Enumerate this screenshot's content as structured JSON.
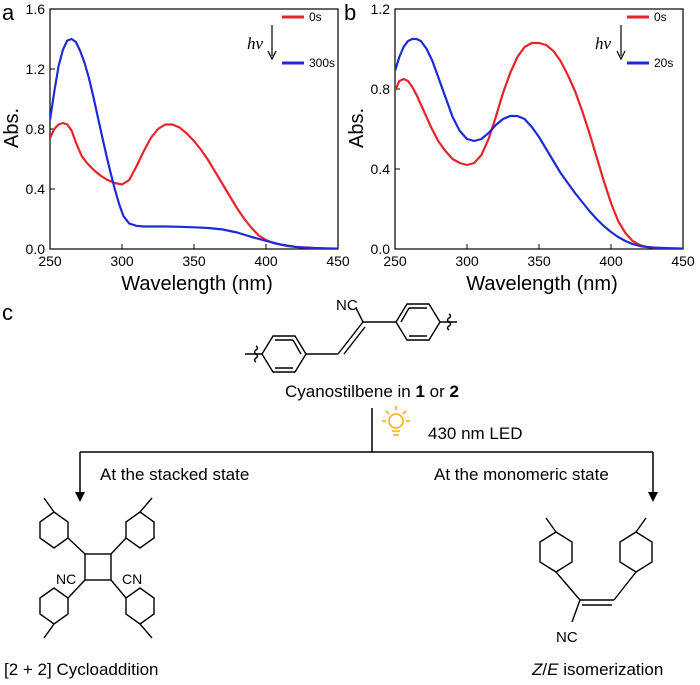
{
  "panel_labels": {
    "a": "a",
    "b": "b",
    "c": "c"
  },
  "chart_data": [
    {
      "type": "line",
      "panel": "a",
      "xlabel": "Wavelength (nm)",
      "ylabel": "Abs.",
      "xlim": [
        250,
        450
      ],
      "ylim": [
        0,
        1.6
      ],
      "xticks": [
        "250",
        "300",
        "350",
        "400",
        "450"
      ],
      "yticks": [
        "0.0",
        "0.4",
        "0.8",
        "1.2",
        "1.6"
      ],
      "annotation": "hv",
      "series": [
        {
          "name": "0s",
          "color": "#e8232a",
          "x": [
            250,
            253,
            256,
            259,
            262,
            265,
            268,
            272,
            276,
            280,
            285,
            290,
            295,
            300,
            305,
            310,
            315,
            320,
            325,
            330,
            335,
            340,
            345,
            350,
            355,
            360,
            365,
            370,
            375,
            380,
            385,
            390,
            395,
            400,
            405,
            410,
            415,
            420,
            425,
            430,
            435,
            440,
            445,
            450
          ],
          "y": [
            0.74,
            0.8,
            0.83,
            0.84,
            0.83,
            0.79,
            0.71,
            0.62,
            0.57,
            0.53,
            0.49,
            0.46,
            0.44,
            0.43,
            0.46,
            0.55,
            0.65,
            0.74,
            0.8,
            0.83,
            0.83,
            0.81,
            0.77,
            0.72,
            0.66,
            0.59,
            0.51,
            0.43,
            0.35,
            0.27,
            0.2,
            0.14,
            0.09,
            0.06,
            0.04,
            0.03,
            0.02,
            0.015,
            0.01,
            0.01,
            0.005,
            0.005,
            0.003,
            0.003
          ]
        },
        {
          "name": "300s",
          "color": "#1d2ad6",
          "x": [
            250,
            253,
            256,
            259,
            262,
            265,
            268,
            271,
            274,
            277,
            280,
            283,
            286,
            289,
            292,
            295,
            298,
            301,
            305,
            310,
            315,
            320,
            330,
            340,
            350,
            360,
            370,
            380,
            390,
            400,
            410,
            420,
            430,
            440,
            450
          ],
          "y": [
            0.86,
            1.05,
            1.22,
            1.33,
            1.39,
            1.4,
            1.38,
            1.32,
            1.24,
            1.14,
            1.02,
            0.89,
            0.76,
            0.63,
            0.51,
            0.4,
            0.3,
            0.22,
            0.17,
            0.155,
            0.15,
            0.15,
            0.15,
            0.148,
            0.145,
            0.14,
            0.13,
            0.11,
            0.08,
            0.055,
            0.03,
            0.015,
            0.008,
            0.004,
            0.003
          ]
        }
      ]
    },
    {
      "type": "line",
      "panel": "b",
      "xlabel": "Wavelength (nm)",
      "ylabel": "Abs.",
      "xlim": [
        250,
        450
      ],
      "ylim": [
        0,
        1.2
      ],
      "xticks": [
        "250",
        "300",
        "350",
        "400",
        "450"
      ],
      "yticks": [
        "0.0",
        "0.4",
        "0.8",
        "1.2"
      ],
      "annotation": "hv",
      "series": [
        {
          "name": "0s",
          "color": "#e8232a",
          "x": [
            250,
            253,
            256,
            259,
            262,
            265,
            270,
            275,
            280,
            285,
            290,
            295,
            300,
            305,
            310,
            315,
            320,
            325,
            330,
            335,
            340,
            345,
            350,
            355,
            360,
            365,
            370,
            375,
            380,
            385,
            390,
            395,
            400,
            405,
            410,
            415,
            420,
            425,
            430,
            440,
            450
          ],
          "y": [
            0.79,
            0.84,
            0.85,
            0.84,
            0.81,
            0.77,
            0.69,
            0.61,
            0.54,
            0.49,
            0.45,
            0.43,
            0.42,
            0.43,
            0.47,
            0.55,
            0.66,
            0.78,
            0.88,
            0.96,
            1.01,
            1.03,
            1.03,
            1.02,
            0.99,
            0.94,
            0.87,
            0.79,
            0.69,
            0.58,
            0.46,
            0.34,
            0.23,
            0.14,
            0.08,
            0.04,
            0.02,
            0.01,
            0.006,
            0.003,
            0.002
          ]
        },
        {
          "name": "20s",
          "color": "#1d2ad6",
          "x": [
            250,
            253,
            256,
            259,
            262,
            265,
            268,
            272,
            276,
            280,
            285,
            290,
            295,
            300,
            305,
            310,
            315,
            320,
            325,
            330,
            335,
            340,
            345,
            350,
            355,
            360,
            365,
            370,
            375,
            380,
            385,
            390,
            395,
            400,
            405,
            410,
            415,
            420,
            425,
            430,
            440,
            450
          ],
          "y": [
            0.89,
            0.96,
            1.01,
            1.04,
            1.05,
            1.05,
            1.04,
            1.0,
            0.94,
            0.86,
            0.76,
            0.66,
            0.59,
            0.55,
            0.54,
            0.55,
            0.58,
            0.62,
            0.65,
            0.665,
            0.665,
            0.65,
            0.61,
            0.56,
            0.5,
            0.44,
            0.38,
            0.33,
            0.28,
            0.235,
            0.19,
            0.15,
            0.115,
            0.085,
            0.06,
            0.04,
            0.025,
            0.015,
            0.01,
            0.007,
            0.004,
            0.002
          ]
        }
      ]
    }
  ],
  "scheme": {
    "monomer_caption_prefix": "Cyanostilbene in ",
    "monomer_caption_bold1": "1",
    "monomer_caption_mid": " or ",
    "monomer_caption_bold2": "2",
    "led_label": "430 nm LED",
    "left_branch_label": "At the stacked state",
    "right_branch_label": "At the monomeric state",
    "left_product": "[2 + 2] Cycloaddition",
    "right_product_prefix": "Z",
    "right_product_slash": "/",
    "right_product_mid": "E",
    "right_product_suffix": " isomerization",
    "nc_label": "NC",
    "cn_label": "CN",
    "led_icon": "light-bulb-icon",
    "led_color": "#f2b21c"
  }
}
